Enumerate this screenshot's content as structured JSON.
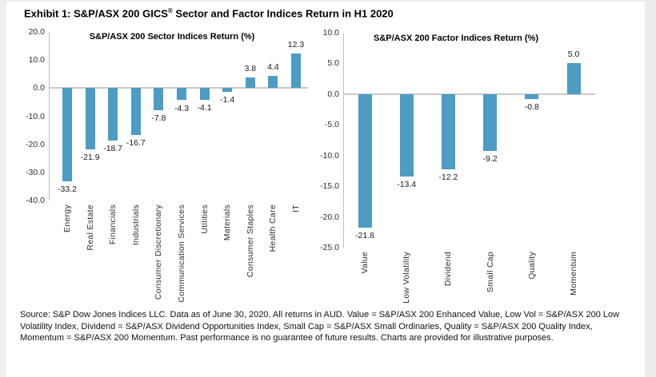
{
  "page": {
    "title_prefix": "Exhibit 1: S&P/ASX 200 GICS",
    "title_reg": "®",
    "title_suffix": " Sector and Factor Indices Return in H1 2020",
    "footnote": "Source: S&P Dow Jones Indices LLC. Data as of June 30, 2020. All returns in AUD. Value = S&P/ASX 200 Enhanced Value, Low Vol = S&P/ASX 200 Low Volatility Index, Dividend = S&P/ASX Dividend Opportunities Index, Small Cap = S&P/ASX Small Ordinaries, Quality = S&P/ASX 200 Quality Index, Momentum = S&P/ASX 200 Momentum. Past performance is no guarantee of future results. Charts are provided for illustrative purposes."
  },
  "colors": {
    "bar": "#4D9CC3",
    "axis_line": "#bfbfbf",
    "zero_line": "#c9c9c9",
    "tick_text": "#2e2e2e",
    "label_text": "#1a1a1a"
  },
  "chart_data": [
    {
      "type": "bar",
      "title": "S&P/ASX 200 Sector Indices Return (%)",
      "categories": [
        "Energy",
        "Real Estate",
        "Financials",
        "Industrials",
        "Consumer Discretionary",
        "Communication Services",
        "Utilities",
        "Materials",
        "Consumer Staples",
        "Health Care",
        "IT"
      ],
      "values": [
        -33.2,
        -21.9,
        -18.7,
        -16.7,
        -7.8,
        -4.3,
        -4.1,
        -1.4,
        3.8,
        4.4,
        12.3
      ],
      "xlabel": "",
      "ylabel": "",
      "ylim": [
        -40,
        20
      ],
      "ytick_step": 10,
      "grid": false,
      "legend": "none",
      "data_labels": true
    },
    {
      "type": "bar",
      "title": "S&P/ASX 200 Factor Indices Return (%)",
      "categories": [
        "Value",
        "Low Volatility",
        "Dividend",
        "Small Cap",
        "Quality",
        "Momentum"
      ],
      "values": [
        -21.8,
        -13.4,
        -12.2,
        -9.2,
        -0.8,
        5.0
      ],
      "xlabel": "",
      "ylabel": "",
      "ylim": [
        -25,
        10
      ],
      "ytick_step": 5,
      "grid": false,
      "legend": "none",
      "data_labels": true
    }
  ]
}
